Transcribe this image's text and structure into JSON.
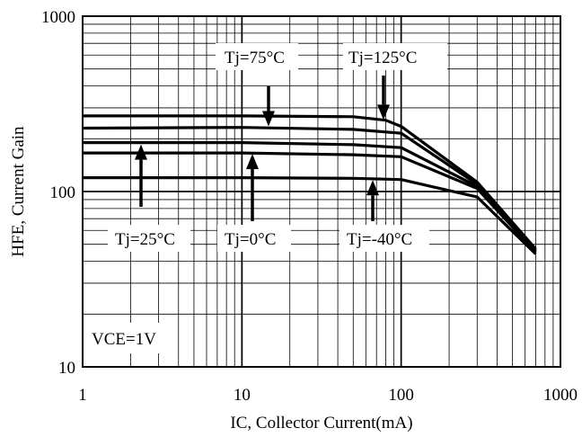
{
  "chart_data": {
    "type": "line",
    "xscale": "log",
    "yscale": "log",
    "xlim": [
      1,
      1000
    ],
    "ylim": [
      10,
      1000
    ],
    "xlabel": "IC, Collector Current(mA)",
    "ylabel": "HFE, Current Gain",
    "x_ticks": [
      "1",
      "10",
      "100",
      "1000"
    ],
    "y_ticks": [
      "10",
      "100",
      "1000"
    ],
    "grid": true,
    "condition_label": "VCE=1V",
    "series": [
      {
        "name": "Tj=125°C",
        "points": [
          [
            1,
            270
          ],
          [
            10,
            270
          ],
          [
            50,
            267
          ],
          [
            80,
            255
          ],
          [
            100,
            235
          ],
          [
            300,
            113
          ],
          [
            700,
            47
          ]
        ]
      },
      {
        "name": "Tj=75°C",
        "points": [
          [
            1,
            230
          ],
          [
            10,
            232
          ],
          [
            50,
            226
          ],
          [
            100,
            215
          ],
          [
            300,
            110
          ],
          [
            700,
            46
          ]
        ]
      },
      {
        "name": "Tj=25°C",
        "points": [
          [
            1,
            190
          ],
          [
            10,
            190
          ],
          [
            50,
            185
          ],
          [
            100,
            178
          ],
          [
            300,
            107
          ],
          [
            700,
            46
          ]
        ]
      },
      {
        "name": "Tj=0°C",
        "points": [
          [
            1,
            166
          ],
          [
            10,
            166
          ],
          [
            50,
            162
          ],
          [
            100,
            158
          ],
          [
            300,
            104
          ],
          [
            700,
            45
          ]
        ]
      },
      {
        "name": "Tj=-40°C",
        "points": [
          [
            1,
            120
          ],
          [
            10,
            120
          ],
          [
            50,
            119
          ],
          [
            100,
            117
          ],
          [
            300,
            93
          ],
          [
            700,
            44
          ]
        ]
      }
    ],
    "annotations": [
      {
        "text": "Tj=75°C",
        "arrow_target": [
          15,
          230
        ]
      },
      {
        "text": "Tj=125°C",
        "arrow_target": [
          80,
          250
        ]
      },
      {
        "text": "Tj=25°C",
        "arrow_target": [
          2.4,
          190
        ]
      },
      {
        "text": "Tj=0°C",
        "arrow_target": [
          11.5,
          168
        ]
      },
      {
        "text": "Tj=-40°C",
        "arrow_target": [
          68,
          119
        ]
      }
    ]
  }
}
